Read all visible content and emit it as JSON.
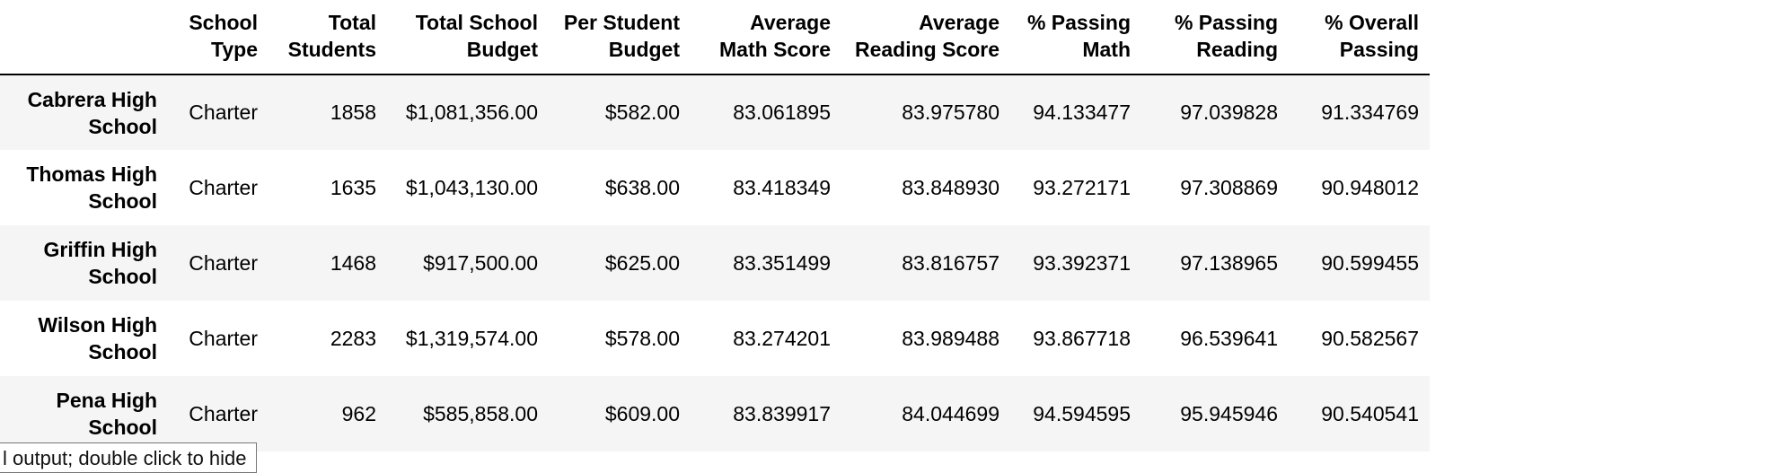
{
  "table": {
    "columns": [
      {
        "label": "",
        "width": 187
      },
      {
        "label": "School Type",
        "width": 112
      },
      {
        "label": "Total Students",
        "width": 132
      },
      {
        "label": "Total School Budget",
        "width": 180
      },
      {
        "label": "Per Student Budget",
        "width": 158
      },
      {
        "label": "Average Math Score",
        "width": 168
      },
      {
        "label": "Average Reading Score",
        "width": 188
      },
      {
        "label": "% Passing Math",
        "width": 146
      },
      {
        "label": "% Passing Reading",
        "width": 164
      },
      {
        "label": "% Overall Passing",
        "width": 157
      }
    ],
    "rows": [
      {
        "name": "Cabrera High School",
        "cells": [
          "Charter",
          "1858",
          "$1,081,356.00",
          "$582.00",
          "83.061895",
          "83.975780",
          "94.133477",
          "97.039828",
          "91.334769"
        ]
      },
      {
        "name": "Thomas High School",
        "cells": [
          "Charter",
          "1635",
          "$1,043,130.00",
          "$638.00",
          "83.418349",
          "83.848930",
          "93.272171",
          "97.308869",
          "90.948012"
        ]
      },
      {
        "name": "Griffin High School",
        "cells": [
          "Charter",
          "1468",
          "$917,500.00",
          "$625.00",
          "83.351499",
          "83.816757",
          "93.392371",
          "97.138965",
          "90.599455"
        ]
      },
      {
        "name": "Wilson High School",
        "cells": [
          "Charter",
          "2283",
          "$1,319,574.00",
          "$578.00",
          "83.274201",
          "83.989488",
          "93.867718",
          "96.539641",
          "90.582567"
        ]
      },
      {
        "name": "Pena High School",
        "cells": [
          "Charter",
          "962",
          "$585,858.00",
          "$609.00",
          "83.839917",
          "84.044699",
          "94.594595",
          "95.945946",
          "90.540541"
        ]
      }
    ]
  },
  "tooltip": {
    "text": "l output; double click to hide"
  }
}
